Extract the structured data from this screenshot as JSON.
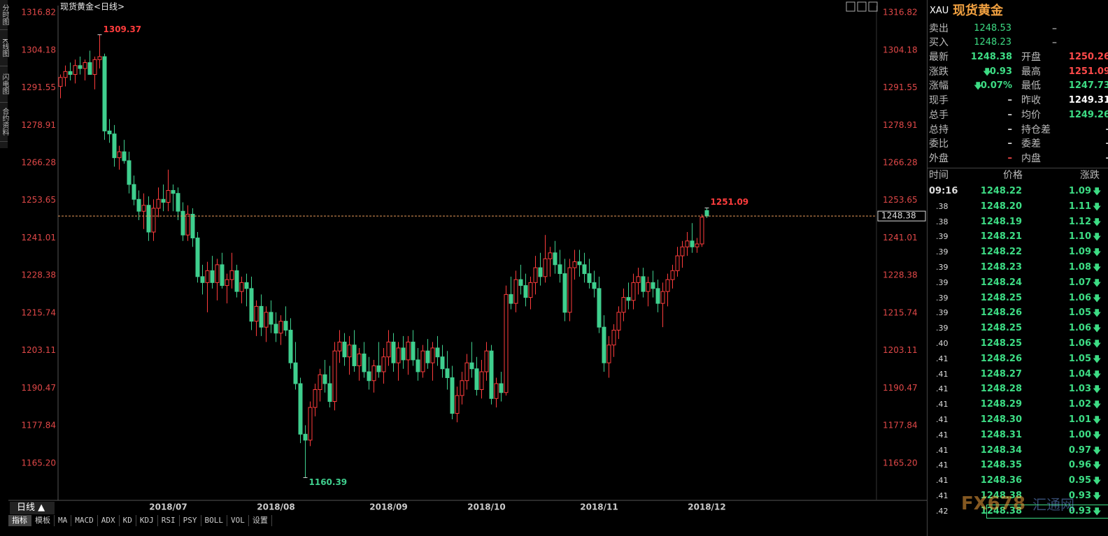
{
  "chart_data": {
    "type": "candlestick",
    "title": "现货黄金<日线>",
    "up_color": "#ff3c3c",
    "down_color": "#3fcf8e",
    "price_line_color": "#e89a5a",
    "ylim": [
      1152.74,
      1318.7
    ],
    "yticks": [
      1316.82,
      1304.18,
      1291.55,
      1278.91,
      1266.28,
      1253.65,
      1241.01,
      1228.38,
      1215.74,
      1203.11,
      1190.47,
      1177.84,
      {
        "value": 1165.2,
        "label": "1165.20"
      }
    ],
    "grid": false,
    "categories": [
      null,
      null,
      null,
      null,
      null,
      null,
      null,
      null,
      null,
      null,
      null,
      null,
      null,
      null,
      null,
      null,
      null,
      null,
      null,
      null,
      null,
      null,
      "2018/07",
      null,
      null,
      null,
      null,
      null,
      null,
      null,
      null,
      null,
      null,
      null,
      null,
      null,
      null,
      null,
      null,
      null,
      null,
      null,
      null,
      null,
      "2018/08",
      null,
      null,
      null,
      null,
      null,
      null,
      null,
      null,
      null,
      null,
      null,
      null,
      null,
      null,
      null,
      null,
      null,
      null,
      null,
      null,
      null,
      null,
      "2018/09",
      null,
      null,
      null,
      null,
      null,
      null,
      null,
      null,
      null,
      null,
      null,
      null,
      null,
      null,
      null,
      null,
      null,
      null,
      null,
      "2018/10",
      null,
      null,
      null,
      null,
      null,
      null,
      null,
      null,
      null,
      null,
      null,
      null,
      null,
      null,
      null,
      null,
      null,
      null,
      null,
      null,
      null,
      null,
      "2018/11",
      null,
      null,
      null,
      null,
      null,
      null,
      null,
      null,
      null,
      null,
      null,
      null,
      null,
      null,
      null,
      null,
      null,
      null,
      null,
      null,
      null,
      "2018/12"
    ],
    "values": [
      [
        1292,
        1296,
        1288,
        1295
      ],
      [
        1295,
        1299,
        1292,
        1297
      ],
      [
        1297,
        1300,
        1294,
        1296
      ],
      [
        1296,
        1301,
        1293,
        1299
      ],
      [
        1299,
        1302,
        1296,
        1298
      ],
      [
        1298,
        1301,
        1294,
        1300
      ],
      [
        1300,
        1304,
        1297,
        1296
      ],
      [
        1296,
        1302,
        1291,
        1301
      ],
      [
        1301,
        1309.37,
        1298,
        1302
      ],
      [
        1302,
        1303,
        1274,
        1277
      ],
      [
        1277,
        1281,
        1273,
        1276
      ],
      [
        1276,
        1279,
        1265,
        1268
      ],
      [
        1268,
        1272,
        1264,
        1270
      ],
      [
        1270,
        1274,
        1266,
        1267
      ],
      [
        1267,
        1270,
        1256,
        1259
      ],
      [
        1259,
        1262,
        1252,
        1254
      ],
      [
        1254,
        1257,
        1247,
        1250
      ],
      [
        1250,
        1256,
        1244,
        1252
      ],
      [
        1252,
        1255,
        1240,
        1243
      ],
      [
        1243,
        1254,
        1240,
        1251
      ],
      [
        1251,
        1258,
        1248,
        1254
      ],
      [
        1254,
        1259,
        1250,
        1253
      ],
      [
        1253,
        1264,
        1250,
        1257
      ],
      [
        1257,
        1259,
        1250,
        1256
      ],
      [
        1256,
        1258,
        1247,
        1250
      ],
      [
        1250,
        1253,
        1240,
        1242
      ],
      [
        1242,
        1252,
        1240,
        1249
      ],
      [
        1249,
        1251,
        1238,
        1241
      ],
      [
        1241,
        1243,
        1226,
        1228
      ],
      [
        1228,
        1232,
        1222,
        1226
      ],
      [
        1226,
        1233,
        1216,
        1230
      ],
      [
        1230,
        1235,
        1224,
        1226
      ],
      [
        1226,
        1234,
        1220,
        1232
      ],
      [
        1232,
        1236,
        1224,
        1225
      ],
      [
        1225,
        1229,
        1219,
        1227
      ],
      [
        1227,
        1236,
        1224,
        1230
      ],
      [
        1230,
        1232,
        1221,
        1223
      ],
      [
        1223,
        1228,
        1219,
        1226
      ],
      [
        1226,
        1229,
        1218,
        1224
      ],
      [
        1224,
        1228,
        1210,
        1213
      ],
      [
        1213,
        1220,
        1208,
        1218
      ],
      [
        1218,
        1222,
        1208,
        1211
      ],
      [
        1211,
        1218,
        1206,
        1216
      ],
      [
        1216,
        1220,
        1209,
        1212
      ],
      [
        1212,
        1216,
        1206,
        1209
      ],
      [
        1209,
        1215,
        1205,
        1213
      ],
      [
        1213,
        1218,
        1208,
        1210
      ],
      [
        1210,
        1214,
        1197,
        1199
      ],
      [
        1199,
        1206,
        1190,
        1192
      ],
      [
        1192,
        1194,
        1172,
        1175
      ],
      [
        1175,
        1178,
        1160.39,
        1173
      ],
      [
        1173,
        1186,
        1171,
        1184
      ],
      [
        1184,
        1192,
        1181,
        1190
      ],
      [
        1190,
        1197,
        1186,
        1195
      ],
      [
        1195,
        1200,
        1189,
        1192
      ],
      [
        1192,
        1198,
        1184,
        1186
      ],
      [
        1186,
        1206,
        1183,
        1203
      ],
      [
        1203,
        1210,
        1199,
        1206
      ],
      [
        1206,
        1209,
        1198,
        1201
      ],
      [
        1201,
        1208,
        1195,
        1205
      ],
      [
        1205,
        1210,
        1196,
        1198
      ],
      [
        1198,
        1204,
        1193,
        1202
      ],
      [
        1202,
        1206,
        1194,
        1196
      ],
      [
        1196,
        1201,
        1190,
        1193
      ],
      [
        1193,
        1200,
        1189,
        1198
      ],
      [
        1198,
        1206,
        1194,
        1196
      ],
      [
        1196,
        1204,
        1192,
        1201
      ],
      [
        1201,
        1210,
        1198,
        1206
      ],
      [
        1206,
        1209,
        1196,
        1199
      ],
      [
        1199,
        1206,
        1193,
        1204
      ],
      [
        1204,
        1208,
        1197,
        1200
      ],
      [
        1200,
        1208,
        1195,
        1206
      ],
      [
        1206,
        1210,
        1198,
        1200
      ],
      [
        1200,
        1204,
        1193,
        1196
      ],
      [
        1196,
        1205,
        1194,
        1203
      ],
      [
        1203,
        1207,
        1197,
        1199
      ],
      [
        1199,
        1206,
        1193,
        1204
      ],
      [
        1204,
        1208,
        1198,
        1201
      ],
      [
        1201,
        1205,
        1194,
        1197
      ],
      [
        1197,
        1203,
        1190,
        1194
      ],
      [
        1194,
        1198,
        1180,
        1182
      ],
      [
        1182,
        1191,
        1179,
        1188
      ],
      [
        1188,
        1196,
        1185,
        1193
      ],
      [
        1193,
        1202,
        1190,
        1199
      ],
      [
        1199,
        1206,
        1194,
        1197
      ],
      [
        1197,
        1201,
        1188,
        1190
      ],
      [
        1190,
        1200,
        1187,
        1196
      ],
      [
        1196,
        1206,
        1193,
        1203
      ],
      [
        1203,
        1205,
        1185,
        1187
      ],
      [
        1187,
        1194,
        1184,
        1192
      ],
      [
        1192,
        1196,
        1186,
        1189
      ],
      [
        1189,
        1225,
        1188,
        1222
      ],
      [
        1222,
        1228,
        1217,
        1219
      ],
      [
        1219,
        1230,
        1216,
        1227
      ],
      [
        1227,
        1232,
        1222,
        1225
      ],
      [
        1225,
        1229,
        1218,
        1221
      ],
      [
        1221,
        1228,
        1217,
        1226
      ],
      [
        1226,
        1235,
        1222,
        1231
      ],
      [
        1231,
        1236,
        1225,
        1228
      ],
      [
        1228,
        1242,
        1226,
        1234
      ],
      [
        1234,
        1238,
        1228,
        1236
      ],
      [
        1236,
        1240,
        1229,
        1232
      ],
      [
        1232,
        1237,
        1226,
        1229
      ],
      [
        1229,
        1234,
        1213,
        1216
      ],
      [
        1216,
        1234,
        1213,
        1231
      ],
      [
        1231,
        1237,
        1227,
        1233
      ],
      [
        1233,
        1237,
        1228,
        1232
      ],
      [
        1232,
        1236,
        1226,
        1229
      ],
      [
        1229,
        1234,
        1224,
        1226
      ],
      [
        1226,
        1230,
        1221,
        1224
      ],
      [
        1224,
        1228,
        1209,
        1211
      ],
      [
        1211,
        1215,
        1196,
        1199
      ],
      [
        1199,
        1208,
        1194,
        1205
      ],
      [
        1205,
        1212,
        1201,
        1210
      ],
      [
        1210,
        1218,
        1207,
        1216
      ],
      [
        1216,
        1224,
        1213,
        1221
      ],
      [
        1221,
        1226,
        1217,
        1220
      ],
      [
        1220,
        1229,
        1217,
        1226
      ],
      [
        1226,
        1231,
        1222,
        1228
      ],
      [
        1228,
        1231,
        1221,
        1223
      ],
      [
        1223,
        1228,
        1218,
        1226
      ],
      [
        1226,
        1230,
        1221,
        1224
      ],
      [
        1224,
        1227,
        1216,
        1219
      ],
      [
        1219,
        1226,
        1211,
        1223
      ],
      [
        1223,
        1229,
        1218,
        1227
      ],
      [
        1227,
        1232,
        1224,
        1230
      ],
      [
        1230,
        1238,
        1228,
        1235
      ],
      [
        1235,
        1240,
        1231,
        1238
      ],
      [
        1238,
        1243,
        1235,
        1240
      ],
      [
        1240,
        1246,
        1236,
        1238
      ],
      [
        1238,
        1241,
        1236,
        1239
      ],
      [
        1239,
        1249,
        1238,
        1248
      ],
      [
        1250.26,
        1251.09,
        1247.73,
        1248.38
      ]
    ]
  },
  "side_tabs": [
    "分时图",
    "K线图",
    "闪电图",
    "合约资料"
  ],
  "footer": {
    "period": "日线 ▲",
    "tools": [
      "指标",
      "模板",
      "MA",
      "MACD",
      "ADX",
      "KD",
      "KDJ",
      "RSI",
      "PSY",
      "BOLL",
      "VOL",
      "设置"
    ]
  },
  "panel": {
    "symbol": "XAU",
    "name": "现货黄金",
    "bidask": [
      [
        "卖出",
        "1248.53",
        "–"
      ],
      [
        "买入",
        "1248.23",
        "–"
      ]
    ],
    "quote": [
      [
        "最新",
        "1248.38",
        "开盘",
        "1250.26"
      ],
      [
        "涨跌",
        "0.93",
        "最高",
        "1251.09"
      ],
      [
        "涨幅",
        "0.07%",
        "最低",
        "1247.73"
      ],
      [
        "现手",
        "–",
        "昨收",
        "1249.31"
      ],
      [
        "总手",
        "–",
        "均价",
        "1249.26"
      ],
      [
        "总持",
        "–",
        "持仓差",
        "–"
      ],
      [
        "委比",
        "–",
        "委差",
        "–"
      ],
      [
        "外盘",
        "–",
        "内盘",
        "–"
      ]
    ],
    "ticks_header": [
      "时间",
      "价格",
      "涨跌"
    ],
    "ticks": [
      [
        "09:16",
        "1248.22",
        "1.09"
      ],
      [
        ".38",
        "1248.20",
        "1.11"
      ],
      [
        ".38",
        "1248.19",
        "1.12"
      ],
      [
        ".39",
        "1248.21",
        "1.10"
      ],
      [
        ".39",
        "1248.22",
        "1.09"
      ],
      [
        ".39",
        "1248.23",
        "1.08"
      ],
      [
        ".39",
        "1248.24",
        "1.07"
      ],
      [
        ".39",
        "1248.25",
        "1.06"
      ],
      [
        ".39",
        "1248.26",
        "1.05"
      ],
      [
        ".39",
        "1248.25",
        "1.06"
      ],
      [
        ".40",
        "1248.25",
        "1.06"
      ],
      [
        ".41",
        "1248.26",
        "1.05"
      ],
      [
        ".41",
        "1248.27",
        "1.04"
      ],
      [
        ".41",
        "1248.28",
        "1.03"
      ],
      [
        ".41",
        "1248.29",
        "1.02"
      ],
      [
        ".41",
        "1248.30",
        "1.01"
      ],
      [
        ".41",
        "1248.31",
        "1.00"
      ],
      [
        ".41",
        "1248.34",
        "0.97"
      ],
      [
        ".41",
        "1248.35",
        "0.96"
      ],
      [
        ".41",
        "1248.36",
        "0.95"
      ],
      [
        ".41",
        "1248.38",
        "0.93"
      ],
      [
        ".42",
        "1248.38",
        "0.93"
      ]
    ],
    "watermark": [
      "FX678",
      "汇通网"
    ]
  }
}
